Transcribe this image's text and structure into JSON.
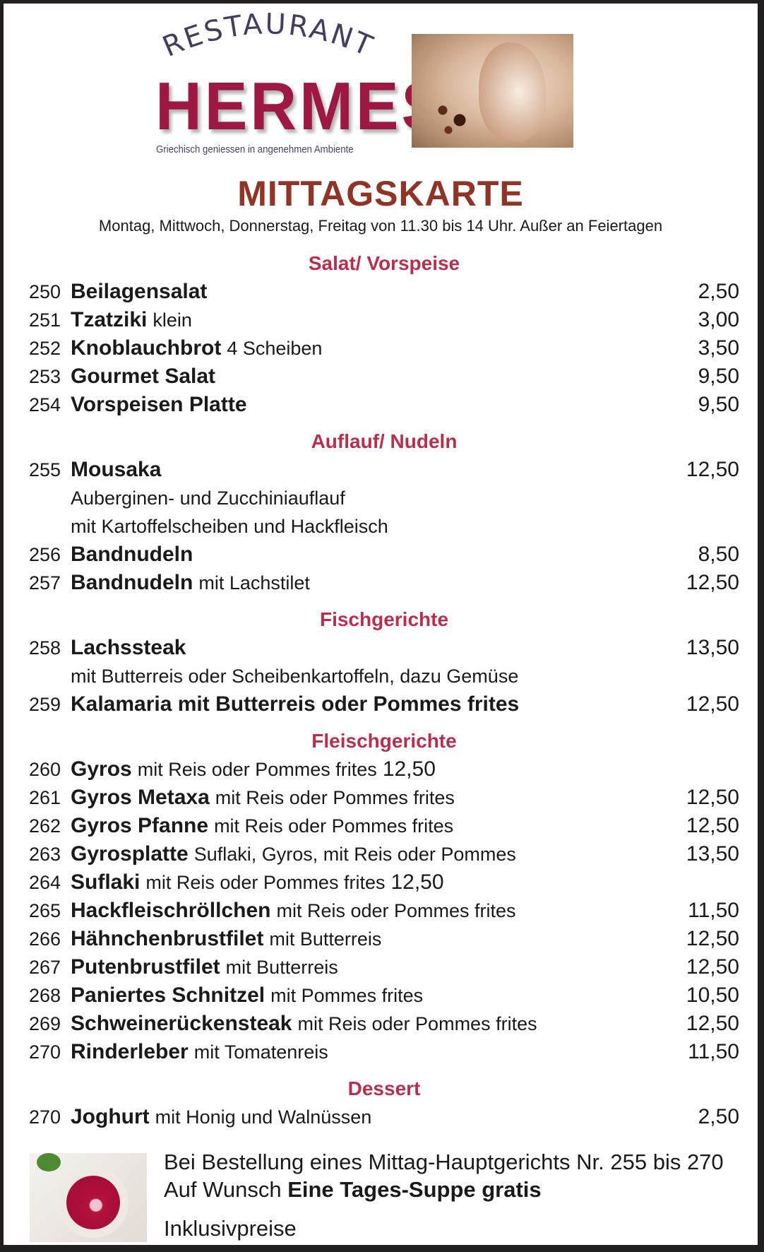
{
  "logo": {
    "arc_text": "RESTAURANT",
    "name": "HERMES",
    "tagline": "Griechisch geniessen in angenehmen Ambiente",
    "color": "#9d1944"
  },
  "title": "MITTAGSKARTE",
  "subtitle": "Montag, Mittwoch, Donnerstag, Freitag von 11.30 bis 14 Uhr. Außer an Feiertagen",
  "sections": [
    {
      "heading": "Salat/ Vorspeise",
      "items": [
        {
          "num": "250",
          "name": "Beilagensalat",
          "desc": "",
          "price": "2,50"
        },
        {
          "num": "251",
          "name": "Tzatziki",
          "desc": "klein",
          "price": "3,00"
        },
        {
          "num": "252",
          "name": "Knoblauchbrot",
          "desc": "4 Scheiben",
          "price": "3,50"
        },
        {
          "num": "253",
          "name": "Gourmet Salat",
          "desc": "",
          "price": "9,50"
        },
        {
          "num": "254",
          "name": "Vorspeisen Platte",
          "desc": "",
          "price": "9,50"
        }
      ]
    },
    {
      "heading": "Auflauf/ Nudeln",
      "items": [
        {
          "num": "255",
          "name": "Mousaka",
          "desc": "",
          "price": "12,50",
          "lines": [
            "Auberginen- und Zucchiniauflauf",
            "mit Kartoffelscheiben und Hackfleisch"
          ]
        },
        {
          "num": "256",
          "name": "Bandnudeln",
          "desc": "",
          "price": "8,50"
        },
        {
          "num": "257",
          "name": "Bandnudeln",
          "desc": "mit Lachstilet",
          "price": "12,50"
        }
      ]
    },
    {
      "heading": "Fischgerichte",
      "items": [
        {
          "num": "258",
          "name": "Lachssteak",
          "desc": "",
          "price": "13,50",
          "lines": [
            "mit Butterreis oder Scheibenkartoffeln, dazu Gemüse"
          ]
        },
        {
          "num": "259",
          "name": "Kalamaria mit Butterreis oder Pommes frites",
          "desc": "",
          "price": "12,50"
        }
      ]
    },
    {
      "heading": "Fleischgerichte",
      "items": [
        {
          "num": "260",
          "name": "Gyros",
          "desc": "mit Reis oder Pommes frites",
          "inline_price": "12,50"
        },
        {
          "num": "261",
          "name": "Gyros Metaxa",
          "desc": "mit Reis oder Pommes frites",
          "price": "12,50"
        },
        {
          "num": "262",
          "name": "Gyros Pfanne",
          "desc": "mit Reis oder Pommes frites",
          "price": "12,50"
        },
        {
          "num": "263",
          "name": "Gyrosplatte",
          "desc": "Suflaki, Gyros, mit Reis oder Pommes",
          "price": "13,50"
        },
        {
          "num": "264",
          "name": "Suflaki",
          "desc": "mit Reis oder Pommes frites",
          "inline_price": "12,50"
        },
        {
          "num": "265",
          "name": "Hackfleischröllchen",
          "desc": "mit Reis oder Pommes frites",
          "price": "11,50"
        },
        {
          "num": "266",
          "name": "Hähnchenbrustfilet",
          "desc": "mit Butterreis",
          "price": "12,50"
        },
        {
          "num": "267",
          "name": "Putenbrustfilet",
          "desc": "mit Butterreis",
          "price": "12,50"
        },
        {
          "num": "268",
          "name": "Paniertes Schnitzel",
          "desc": "mit Pommes frites",
          "price": "10,50"
        },
        {
          "num": "269",
          "name": "Schweinerückensteak",
          "desc": "mit Reis oder Pommes frites",
          "price": "12,50"
        },
        {
          "num": "270",
          "name": "Rinderleber",
          "desc": "mit Tomatenreis",
          "price": "11,50"
        }
      ]
    },
    {
      "heading": "Dessert",
      "items": [
        {
          "num": "270",
          "name": "Joghurt",
          "desc": "mit Honig und Walnüssen",
          "price": "2,50"
        }
      ]
    }
  ],
  "footer": {
    "line1": "Bei Bestellung eines Mittag-Hauptgerichts Nr. 255 bis 270",
    "line2_prefix": "Auf Wunsch",
    "line2_bold": "Eine Tages-Suppe gratis",
    "line3": "Inklusivpreise"
  },
  "colors": {
    "title": "#8e3527",
    "section": "#b3304f",
    "border": "#231f20"
  }
}
